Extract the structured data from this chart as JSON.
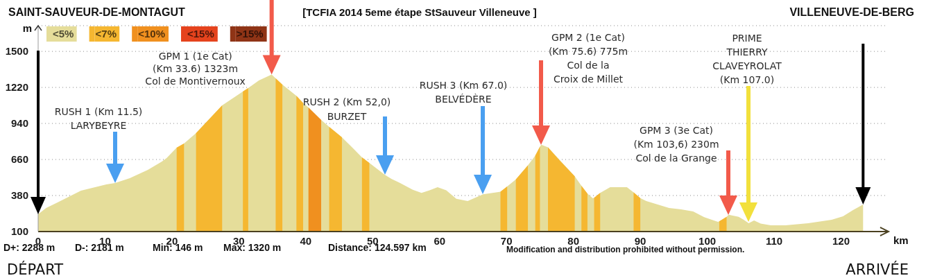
{
  "chart_data": {
    "type": "area",
    "title": "[TCFIA 2014 5eme étape StSauveur Villeneuve ]",
    "xlabel": "km",
    "ylabel": "m",
    "xlim": [
      0,
      127
    ],
    "ylim": [
      100,
      1700
    ],
    "xticks": [
      0,
      10,
      20,
      30,
      40,
      50,
      60,
      70,
      80,
      90,
      100,
      110,
      120
    ],
    "yticks": [
      100,
      380,
      660,
      940,
      1220,
      1500
    ],
    "grid": "y",
    "legend": "top left",
    "series": [
      {
        "name": "<5%",
        "color": "#e5dd9a",
        "x": [
          0,
          1.2,
          2.9,
          6.4,
          10.2,
          11.5,
          13.7,
          16.4,
          18.5,
          19.2,
          20.7,
          21.8,
          23.6,
          27.5,
          30.6,
          31.4,
          33,
          34.9,
          35.5,
          36.5,
          38.6,
          39.6,
          40.4,
          42.3,
          43.5,
          45.4,
          47,
          48.4,
          49.5,
          51.8,
          52.8,
          54,
          56,
          57.3,
          58.5,
          59.7,
          61,
          62.5,
          64.2,
          66.5,
          68.8,
          69.1,
          70.1,
          71.4,
          73.2,
          74.3,
          75,
          75.2,
          76.2,
          80.2,
          81.2,
          82.1,
          82.9,
          83.1,
          84,
          85.5,
          88,
          89,
          90,
          90.9,
          94.3,
          96.1,
          97.9,
          99.5,
          101.6,
          101.8,
          102.9,
          103.2,
          104.7,
          105.5,
          106.2,
          107,
          108,
          109.5,
          111.7,
          115.1,
          118.6,
          120.3,
          121.8,
          123.3
        ],
        "values": [
          235,
          283,
          326,
          418,
          466,
          477,
          515,
          579,
          644,
          671,
          752,
          784,
          865,
          1080,
          1188,
          1215,
          1275,
          1320,
          1290,
          1242,
          1155,
          1100,
          1064,
          967,
          913,
          832,
          750,
          676,
          633,
          542,
          509,
          480,
          425,
          400,
          420,
          445,
          420,
          355,
          337,
          390,
          407,
          410,
          450,
          505,
          615,
          690,
          760,
          775,
          755,
          530,
          455,
          395,
          358,
          362,
          400,
          445,
          445,
          405,
          360,
          337,
          283,
          272,
          256,
          213,
          175,
          180,
          215,
          230,
          215,
          190,
          165,
          186,
          162,
          148,
          148,
          165,
          192,
          218,
          267,
          310
        ]
      },
      {
        "name": "<7%",
        "color": "#f5b731",
        "x": [
          20.7,
          21.8,
          22.5,
          23.6,
          27.5,
          29,
          30.6,
          31.4,
          33,
          35.5,
          36.5,
          37.5,
          38.6,
          39.6,
          41,
          43.5,
          45.4,
          47,
          48.4,
          49.5,
          60,
          69.1,
          70.1,
          70.8,
          71.4,
          73.2,
          73.8,
          74.3,
          75,
          75.6,
          76.2,
          78,
          80.2,
          80.7,
          81.2,
          82.1,
          82.6,
          83.1,
          84,
          86,
          89,
          90,
          95,
          101.8,
          102.9
        ],
        "values": [
          752,
          784,
          null,
          865,
          1080,
          null,
          1188,
          1215,
          null,
          1290,
          1242,
          null,
          1155,
          1100,
          null,
          913,
          832,
          null,
          676,
          633,
          null,
          410,
          450,
          null,
          505,
          615,
          null,
          690,
          760,
          null,
          755,
          650,
          530,
          null,
          455,
          395,
          null,
          362,
          400,
          null,
          405,
          360,
          null,
          180,
          215
        ]
      },
      {
        "name": "<10%",
        "color": "#f0901f",
        "x": [
          40.4,
          42.3
        ],
        "values": [
          1064,
          967
        ]
      },
      {
        "name": "<15%",
        "color": "#e5431d"
      },
      {
        "name": ">15%",
        "color": "#8f3416"
      }
    ],
    "annotations": [
      "SAINT-SAUVEUR-DE-MONTAGUT",
      "VILLENEUVE-DE-BERG",
      "DÉPART",
      "ARRIVÉE",
      "RUSH 1 (Km 11.5)\nLARYBEYRE",
      {
        "text": "GPM 1 (1e Cat)\n(Km 33.6) 1323m\nCol de Montivernoux",
        "x": 34.9,
        "y": 1320
      },
      "RUSH 2 (Km 52,0)\nBURZET",
      "RUSH 3 (Km 67.0)\nBELVÉDÈRE",
      "GPM 2 (1e Cat)\n(Km 75.6) 775m\nCol de la\nCroix de Millet",
      "GPM 3 (3e Cat)\n(Km 103,6) 230m\nCol de la Grange",
      "PRIME\nTHIERRY\nCLAVEYROLAT\n(Km 107.0)",
      "D+: 2288 m",
      "D-: 2181 m",
      "Min: 146 m",
      "Max: 1320 m",
      "Distance: 124.597 km",
      "Modification and distribution prohibited without permission."
    ]
  }
}
